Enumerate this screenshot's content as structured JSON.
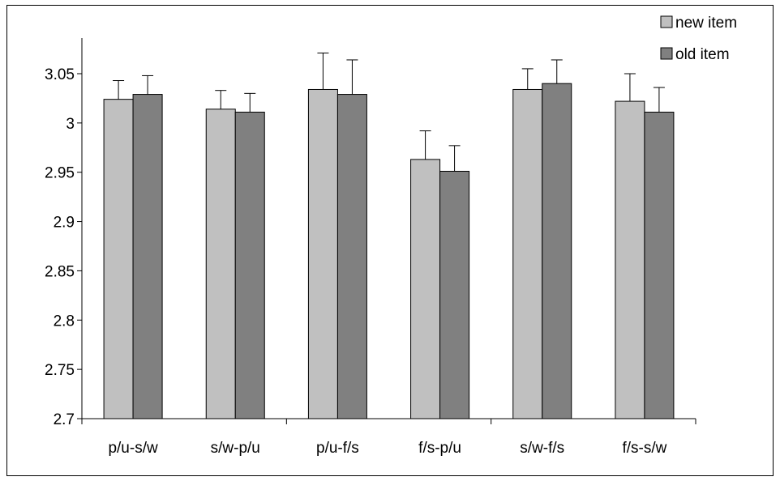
{
  "chart_data": {
    "type": "bar",
    "categories": [
      "p/u-s/w",
      "s/w-p/u",
      "p/u-f/s",
      "f/s-p/u",
      "s/w-f/s",
      "f/s-s/w"
    ],
    "series": [
      {
        "name": "new item",
        "color": "#c0c0c0",
        "values": [
          3.024,
          3.014,
          3.034,
          2.963,
          3.034,
          3.022
        ],
        "errors": [
          0.019,
          0.019,
          0.037,
          0.029,
          0.021,
          0.028
        ]
      },
      {
        "name": "old item",
        "color": "#808080",
        "values": [
          3.029,
          3.011,
          3.029,
          2.951,
          3.04,
          3.011
        ],
        "errors": [
          0.019,
          0.019,
          0.035,
          0.026,
          0.024,
          0.025
        ]
      }
    ],
    "ylim": [
      2.7,
      3.05
    ],
    "yticks": [
      "2.7",
      "2.75",
      "2.8",
      "2.85",
      "2.9",
      "2.95",
      "3",
      "3.05"
    ],
    "grid": false,
    "legend_position": "top-right"
  }
}
